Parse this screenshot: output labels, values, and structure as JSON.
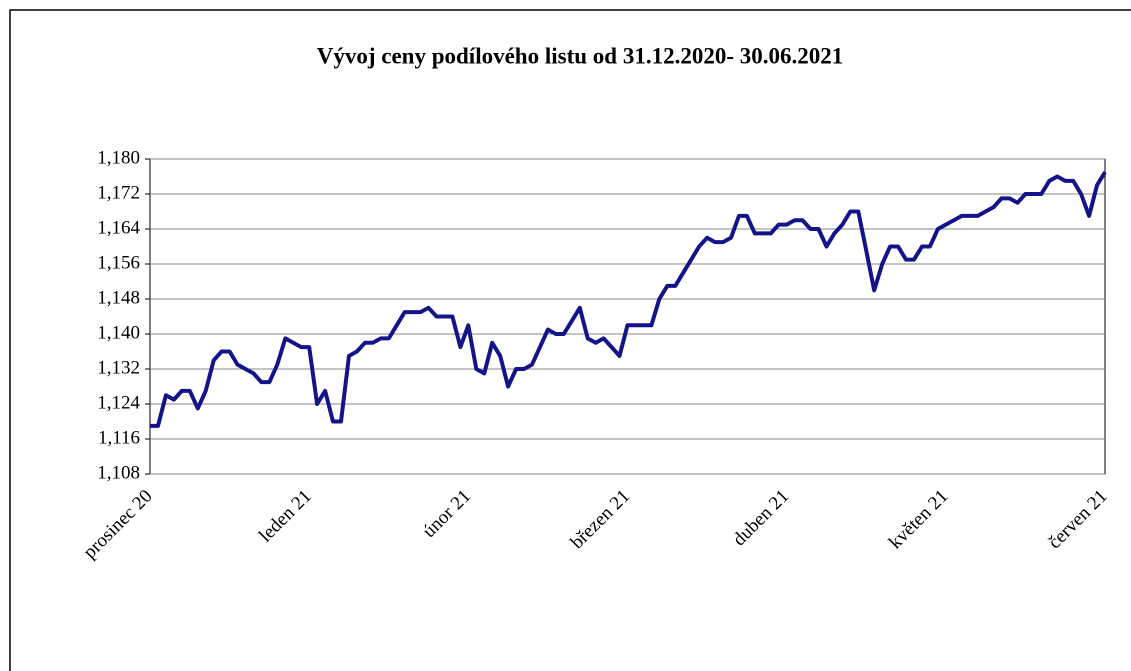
{
  "chart_data": {
    "type": "line",
    "title": "Vývoj ceny podílového listu od 31.12.2020- 30.06.2021",
    "categories": [
      "prosinec 20",
      null,
      null,
      null,
      null,
      null,
      null,
      null,
      null,
      null,
      null,
      null,
      null,
      null,
      null,
      null,
      null,
      null,
      null,
      null,
      "leden 21",
      null,
      null,
      null,
      null,
      null,
      null,
      null,
      null,
      null,
      null,
      null,
      null,
      null,
      null,
      null,
      null,
      null,
      null,
      null,
      "únor 21",
      null,
      null,
      null,
      null,
      null,
      null,
      null,
      null,
      null,
      null,
      null,
      null,
      null,
      null,
      null,
      null,
      null,
      null,
      null,
      "březen 21",
      null,
      null,
      null,
      null,
      null,
      null,
      null,
      null,
      null,
      null,
      null,
      null,
      null,
      null,
      null,
      null,
      null,
      null,
      null,
      "duben 21",
      null,
      null,
      null,
      null,
      null,
      null,
      null,
      null,
      null,
      null,
      null,
      null,
      null,
      null,
      null,
      null,
      null,
      null,
      null,
      "květen 21",
      null,
      null,
      null,
      null,
      null,
      null,
      null,
      null,
      null,
      null,
      null,
      null,
      null,
      null,
      null,
      null,
      null,
      null,
      null,
      "červen 21"
    ],
    "values": [
      1.119,
      1.119,
      1.126,
      1.125,
      1.127,
      1.127,
      1.123,
      1.127,
      1.134,
      1.136,
      1.136,
      1.133,
      1.132,
      1.131,
      1.129,
      1.129,
      1.133,
      1.139,
      1.138,
      1.137,
      1.137,
      1.124,
      1.127,
      1.12,
      1.12,
      1.135,
      1.136,
      1.138,
      1.138,
      1.139,
      1.139,
      1.142,
      1.145,
      1.145,
      1.145,
      1.146,
      1.144,
      1.144,
      1.144,
      1.137,
      1.142,
      1.132,
      1.131,
      1.138,
      1.135,
      1.128,
      1.132,
      1.132,
      1.133,
      1.137,
      1.141,
      1.14,
      1.14,
      1.143,
      1.146,
      1.139,
      1.138,
      1.139,
      1.137,
      1.135,
      1.142,
      1.142,
      1.142,
      1.142,
      1.148,
      1.151,
      1.151,
      1.154,
      1.157,
      1.16,
      1.162,
      1.161,
      1.161,
      1.162,
      1.167,
      1.167,
      1.163,
      1.163,
      1.163,
      1.165,
      1.165,
      1.166,
      1.166,
      1.164,
      1.164,
      1.16,
      1.163,
      1.165,
      1.168,
      1.168,
      1.159,
      1.15,
      1.156,
      1.16,
      1.16,
      1.157,
      1.157,
      1.16,
      1.16,
      1.164,
      1.165,
      1.166,
      1.167,
      1.167,
      1.167,
      1.168,
      1.169,
      1.171,
      1.171,
      1.17,
      1.172,
      1.172,
      1.172,
      1.175,
      1.176,
      1.175,
      1.175,
      1.172,
      1.167,
      1.174,
      1.177
    ],
    "color": "#14148a",
    "ylim": [
      1.108,
      1.18
    ],
    "yticks": [
      {
        "value": 1.108,
        "label": "1,108"
      },
      {
        "value": 1.116,
        "label": "1,116"
      },
      {
        "value": 1.124,
        "label": "1,124"
      },
      {
        "value": 1.132,
        "label": "1,132"
      },
      {
        "value": 1.14,
        "label": "1,140"
      },
      {
        "value": 1.148,
        "label": "1,148"
      },
      {
        "value": 1.156,
        "label": "1,156"
      },
      {
        "value": 1.164,
        "label": "1,164"
      },
      {
        "value": 1.172,
        "label": "1,172"
      },
      {
        "value": 1.18,
        "label": "1,180"
      }
    ],
    "grid": true
  }
}
